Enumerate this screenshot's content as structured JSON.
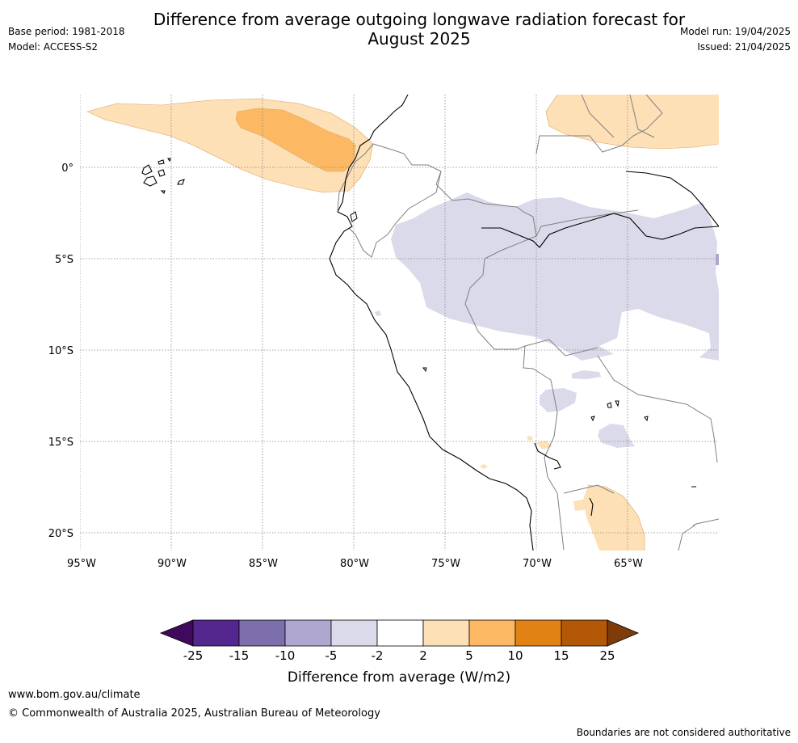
{
  "header": {
    "title_line1": "Difference from average outgoing longwave radiation forecast for",
    "title_line2": "August 2025",
    "base_period": "Base period: 1981-2018",
    "model": "Model: ACCESS-S2",
    "model_run": "Model run: 19/04/2025",
    "issued": "Issued: 21/04/2025"
  },
  "map": {
    "lat_labels": [
      "0°",
      "5°S",
      "10°S",
      "15°S",
      "20°S"
    ],
    "lon_labels": [
      "95°W",
      "90°W",
      "85°W",
      "80°W",
      "75°W",
      "70°W",
      "65°W"
    ]
  },
  "colorbar": {
    "tick_labels": [
      "-25",
      "-15",
      "-10",
      "-5",
      "-2",
      "2",
      "5",
      "10",
      "15",
      "25"
    ],
    "colors": [
      "#3f0a5c",
      "#54278f",
      "#7d6fab",
      "#b0a7d0",
      "#dadaea",
      "#ffffff",
      "#fee0b6",
      "#fdb863",
      "#e08214",
      "#b35806",
      "#7f3b08"
    ],
    "label": "Difference from average (W/m2)"
  },
  "footer": {
    "url": "www.bom.gov.au/climate",
    "copyright": "© Commonwealth of Australia 2025, Australian Bureau of Meteorology",
    "disclaimer": "Boundaries are not considered authoritative"
  }
}
